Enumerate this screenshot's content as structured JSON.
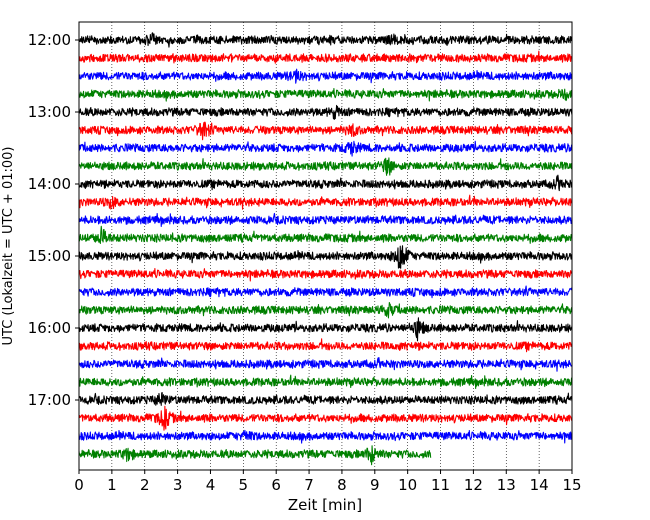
{
  "chart_data": {
    "type": "line",
    "title": "",
    "xlabel": "Zeit  [min]",
    "ylabel": "UTC (Lokalzeit = UTC + 01:00)",
    "xlim": [
      0,
      15
    ],
    "x_ticks": [
      0,
      1,
      2,
      3,
      4,
      5,
      6,
      7,
      8,
      9,
      10,
      11,
      12,
      13,
      14,
      15
    ],
    "x_tick_labels": [
      "0",
      "1",
      "2",
      "3",
      "4",
      "5",
      "6",
      "7",
      "8",
      "9",
      "10",
      "11",
      "12",
      "13",
      "14",
      "15"
    ],
    "y_tick_labels": [
      {
        "label": "12:00",
        "trace_index": 0
      },
      {
        "label": "13:00",
        "trace_index": 4
      },
      {
        "label": "14:00",
        "trace_index": 8
      },
      {
        "label": "15:00",
        "trace_index": 12
      },
      {
        "label": "16:00",
        "trace_index": 16
      },
      {
        "label": "17:00",
        "trace_index": 20
      }
    ],
    "grid": "vertical dotted",
    "colors": [
      "#000000",
      "#ff0000",
      "#0000ff",
      "#008000"
    ],
    "traces": [
      {
        "start": "12:00",
        "color": "#000000",
        "end_min": 15,
        "events": [
          [
            2.2,
            0.6
          ],
          [
            9.5,
            0.5
          ]
        ]
      },
      {
        "start": "12:15",
        "color": "#ff0000",
        "end_min": 15,
        "events": []
      },
      {
        "start": "12:30",
        "color": "#0000ff",
        "end_min": 15,
        "events": [
          [
            6.6,
            0.7
          ]
        ]
      },
      {
        "start": "12:45",
        "color": "#008000",
        "end_min": 15,
        "events": [
          [
            14.8,
            0.5
          ]
        ]
      },
      {
        "start": "13:00",
        "color": "#000000",
        "end_min": 15,
        "events": [
          [
            7.8,
            0.7
          ]
        ]
      },
      {
        "start": "13:15",
        "color": "#ff0000",
        "end_min": 15,
        "events": [
          [
            3.8,
            1.4
          ],
          [
            8.3,
            0.7
          ]
        ]
      },
      {
        "start": "13:30",
        "color": "#0000ff",
        "end_min": 15,
        "events": [
          [
            8.3,
            0.9
          ]
        ]
      },
      {
        "start": "13:45",
        "color": "#008000",
        "end_min": 15,
        "events": [
          [
            9.4,
            1.2
          ]
        ]
      },
      {
        "start": "14:00",
        "color": "#000000",
        "end_min": 15,
        "events": [
          [
            14.6,
            0.5
          ]
        ]
      },
      {
        "start": "14:15",
        "color": "#ff0000",
        "end_min": 15,
        "events": [
          [
            1.0,
            0.7
          ]
        ]
      },
      {
        "start": "14:30",
        "color": "#0000ff",
        "end_min": 15,
        "events": []
      },
      {
        "start": "14:45",
        "color": "#008000",
        "end_min": 15,
        "events": [
          [
            0.7,
            1.3
          ]
        ]
      },
      {
        "start": "15:00",
        "color": "#000000",
        "end_min": 15,
        "events": [
          [
            9.8,
            2.6
          ]
        ]
      },
      {
        "start": "15:15",
        "color": "#ff0000",
        "end_min": 15,
        "events": []
      },
      {
        "start": "15:30",
        "color": "#0000ff",
        "end_min": 15,
        "events": []
      },
      {
        "start": "15:45",
        "color": "#008000",
        "end_min": 15,
        "events": [
          [
            9.4,
            0.8
          ]
        ]
      },
      {
        "start": "16:00",
        "color": "#000000",
        "end_min": 15,
        "events": [
          [
            10.3,
            1.4
          ]
        ]
      },
      {
        "start": "16:15",
        "color": "#ff0000",
        "end_min": 15,
        "events": []
      },
      {
        "start": "16:30",
        "color": "#0000ff",
        "end_min": 15,
        "events": []
      },
      {
        "start": "16:45",
        "color": "#008000",
        "end_min": 15,
        "events": []
      },
      {
        "start": "17:00",
        "color": "#000000",
        "end_min": 15,
        "events": [
          [
            2.5,
            0.8
          ]
        ]
      },
      {
        "start": "17:15",
        "color": "#ff0000",
        "end_min": 15,
        "events": [
          [
            2.6,
            1.5
          ]
        ]
      },
      {
        "start": "17:30",
        "color": "#0000ff",
        "end_min": 15,
        "events": [
          [
            5.1,
            0.5
          ]
        ]
      },
      {
        "start": "17:45",
        "color": "#008000",
        "end_min": 10.7,
        "events": [
          [
            1.5,
            0.8
          ],
          [
            8.9,
            1.2
          ]
        ]
      }
    ]
  }
}
